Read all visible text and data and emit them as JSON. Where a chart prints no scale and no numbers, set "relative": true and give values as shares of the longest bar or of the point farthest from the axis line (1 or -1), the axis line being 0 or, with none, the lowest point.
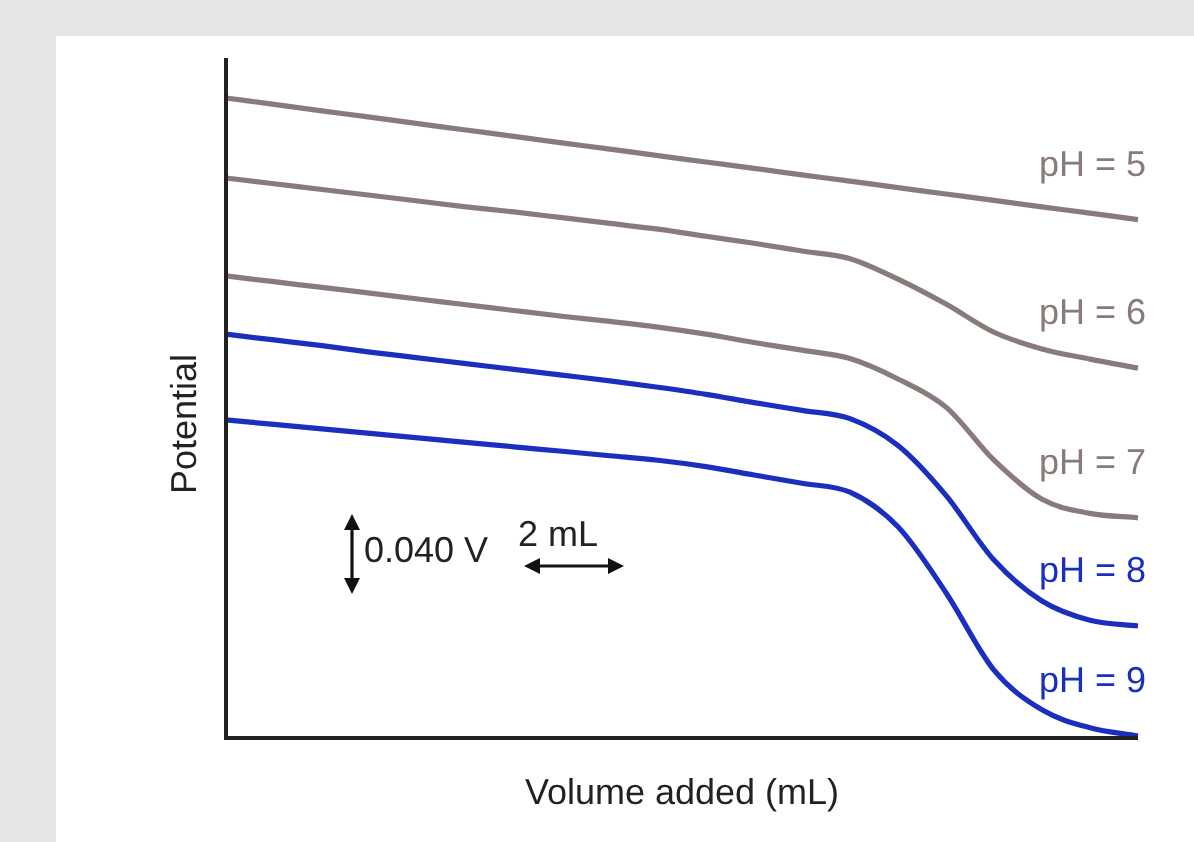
{
  "chart_data": {
    "type": "line",
    "relative": true,
    "xlabel": "Volume added (mL)",
    "ylabel": "Potential",
    "legend": false,
    "marker": "none",
    "line_style": "solid",
    "categories": [
      null,
      null,
      null,
      null,
      null,
      null,
      null,
      null,
      null,
      null,
      null,
      null,
      null,
      null,
      null,
      null,
      null,
      null,
      null,
      null
    ],
    "series": [
      {
        "name": "pH = 5",
        "color": "#8a7b7b",
        "values": [
          1.0,
          0.99,
          0.98,
          0.97,
          0.96,
          0.95,
          0.94,
          0.93,
          0.92,
          0.91,
          0.9,
          0.89,
          0.88,
          0.87,
          0.86,
          0.85,
          0.84,
          0.83,
          0.82,
          0.81
        ]
      },
      {
        "name": "pH = 6",
        "color": "#8a7b7b",
        "values": [
          0.875,
          0.866,
          0.857,
          0.848,
          0.839,
          0.83,
          0.822,
          0.813,
          0.804,
          0.795,
          0.784,
          0.773,
          0.761,
          0.749,
          0.717,
          0.678,
          0.634,
          0.608,
          0.592,
          0.578
        ]
      },
      {
        "name": "pH = 7",
        "color": "#8a7b7b",
        "values": [
          0.722,
          0.713,
          0.704,
          0.695,
          0.686,
          0.677,
          0.668,
          0.659,
          0.651,
          0.642,
          0.631,
          0.618,
          0.606,
          0.593,
          0.561,
          0.517,
          0.434,
          0.373,
          0.351,
          0.344
        ]
      },
      {
        "name": "pH = 8",
        "color": "#1a2fbf",
        "values": [
          0.631,
          0.622,
          0.613,
          0.603,
          0.594,
          0.585,
          0.576,
          0.567,
          0.558,
          0.548,
          0.537,
          0.524,
          0.512,
          0.499,
          0.457,
          0.379,
          0.278,
          0.214,
          0.184,
          0.175
        ]
      },
      {
        "name": "pH = 9",
        "color": "#1a2fbf",
        "values": [
          0.497,
          0.49,
          0.483,
          0.476,
          0.469,
          0.462,
          0.455,
          0.448,
          0.441,
          0.434,
          0.424,
          0.411,
          0.398,
          0.384,
          0.33,
          0.227,
          0.106,
          0.044,
          0.016,
          0.003
        ]
      }
    ],
    "annotations": [
      "0.040 V",
      "2 mL"
    ]
  }
}
